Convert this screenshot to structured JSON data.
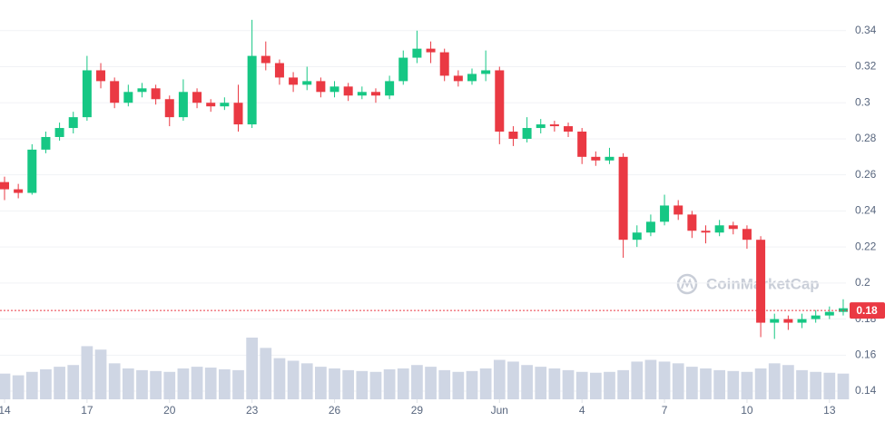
{
  "chart_data": {
    "type": "candlestick",
    "watermark": "CoinMarketCap",
    "up_color": "#16c784",
    "down_color": "#ea3943",
    "volume_color": "#cfd6e4",
    "grid": true,
    "ylim": [
      0.1355,
      0.357
    ],
    "yticks": [
      0.14,
      0.16,
      0.18,
      0.2,
      0.22,
      0.24,
      0.26,
      0.28,
      0.3,
      0.32,
      0.34
    ],
    "xlim": [
      -0.165,
      30.6
    ],
    "xticks": [
      {
        "value": 0,
        "label": "14"
      },
      {
        "value": 3,
        "label": "17"
      },
      {
        "value": 6,
        "label": "20"
      },
      {
        "value": 9,
        "label": "23"
      },
      {
        "value": 12,
        "label": "26"
      },
      {
        "value": 15,
        "label": "29"
      },
      {
        "value": 18,
        "label": "Jun"
      },
      {
        "value": 21,
        "label": "4"
      },
      {
        "value": 24,
        "label": "7"
      },
      {
        "value": 27,
        "label": "10"
      },
      {
        "value": 30,
        "label": "13"
      }
    ],
    "current_price": {
      "value": 0.1848,
      "label": "0.18"
    },
    "x": [
      0,
      0.5,
      1,
      1.5,
      2,
      2.5,
      3,
      3.5,
      4,
      4.5,
      5,
      5.5,
      6,
      6.5,
      7,
      7.5,
      8,
      8.5,
      9,
      9.5,
      10,
      10.5,
      11,
      11.5,
      12,
      12.5,
      13,
      13.5,
      14,
      14.5,
      15,
      15.5,
      16,
      16.5,
      17,
      17.5,
      18,
      18.5,
      19,
      19.5,
      20,
      20.5,
      21,
      21.5,
      22,
      22.5,
      23,
      23.5,
      24,
      24.5,
      25,
      25.5,
      26,
      26.5,
      27,
      27.5,
      28,
      28.5,
      29,
      29.5,
      30,
      30.5
    ],
    "open": [
      0.256,
      0.252,
      0.25,
      0.274,
      0.281,
      0.286,
      0.292,
      0.318,
      0.312,
      0.3,
      0.306,
      0.308,
      0.302,
      0.292,
      0.306,
      0.3,
      0.298,
      0.3,
      0.288,
      0.326,
      0.322,
      0.314,
      0.31,
      0.312,
      0.306,
      0.309,
      0.304,
      0.306,
      0.304,
      0.312,
      0.325,
      0.33,
      0.328,
      0.315,
      0.312,
      0.316,
      0.318,
      0.284,
      0.28,
      0.286,
      0.288,
      0.287,
      0.284,
      0.27,
      0.268,
      0.27,
      0.224,
      0.228,
      0.234,
      0.243,
      0.238,
      0.229,
      0.228,
      0.232,
      0.23,
      0.224,
      0.178,
      0.18,
      0.178,
      0.18,
      0.182,
      0.184
    ],
    "high": [
      0.259,
      0.255,
      0.277,
      0.284,
      0.289,
      0.295,
      0.326,
      0.322,
      0.314,
      0.31,
      0.311,
      0.31,
      0.304,
      0.313,
      0.308,
      0.302,
      0.303,
      0.31,
      0.346,
      0.334,
      0.324,
      0.317,
      0.32,
      0.314,
      0.312,
      0.311,
      0.309,
      0.308,
      0.315,
      0.329,
      0.34,
      0.334,
      0.33,
      0.318,
      0.319,
      0.329,
      0.32,
      0.287,
      0.292,
      0.291,
      0.29,
      0.289,
      0.286,
      0.273,
      0.275,
      0.272,
      0.232,
      0.238,
      0.249,
      0.246,
      0.24,
      0.232,
      0.235,
      0.234,
      0.232,
      0.226,
      0.183,
      0.182,
      0.183,
      0.185,
      0.187,
      0.191
    ],
    "low": [
      0.246,
      0.247,
      0.249,
      0.272,
      0.279,
      0.283,
      0.29,
      0.308,
      0.297,
      0.298,
      0.303,
      0.299,
      0.287,
      0.29,
      0.297,
      0.295,
      0.296,
      0.284,
      0.286,
      0.318,
      0.31,
      0.306,
      0.307,
      0.303,
      0.303,
      0.301,
      0.302,
      0.3,
      0.302,
      0.31,
      0.322,
      0.322,
      0.312,
      0.309,
      0.31,
      0.312,
      0.277,
      0.276,
      0.278,
      0.283,
      0.284,
      0.281,
      0.266,
      0.265,
      0.266,
      0.214,
      0.22,
      0.226,
      0.232,
      0.235,
      0.225,
      0.222,
      0.226,
      0.227,
      0.219,
      0.17,
      0.169,
      0.174,
      0.175,
      0.178,
      0.18,
      0.182
    ],
    "close": [
      0.252,
      0.25,
      0.274,
      0.281,
      0.286,
      0.292,
      0.318,
      0.312,
      0.3,
      0.306,
      0.308,
      0.302,
      0.292,
      0.306,
      0.3,
      0.298,
      0.3,
      0.288,
      0.326,
      0.322,
      0.314,
      0.31,
      0.312,
      0.306,
      0.309,
      0.304,
      0.306,
      0.304,
      0.312,
      0.325,
      0.33,
      0.328,
      0.315,
      0.312,
      0.316,
      0.318,
      0.284,
      0.28,
      0.286,
      0.288,
      0.287,
      0.284,
      0.27,
      0.268,
      0.27,
      0.224,
      0.228,
      0.234,
      0.243,
      0.238,
      0.229,
      0.228,
      0.232,
      0.23,
      0.224,
      0.178,
      0.18,
      0.178,
      0.18,
      0.182,
      0.184,
      0.186
    ],
    "volume": [
      30,
      28,
      32,
      35,
      38,
      40,
      62,
      58,
      42,
      36,
      34,
      33,
      32,
      36,
      38,
      37,
      35,
      34,
      72,
      60,
      48,
      45,
      42,
      38,
      36,
      34,
      33,
      32,
      35,
      36,
      40,
      38,
      34,
      32,
      33,
      36,
      46,
      44,
      40,
      38,
      36,
      34,
      32,
      31,
      32,
      34,
      44,
      46,
      44,
      42,
      38,
      36,
      34,
      33,
      32,
      36,
      42,
      40,
      34,
      32,
      31,
      30
    ]
  }
}
